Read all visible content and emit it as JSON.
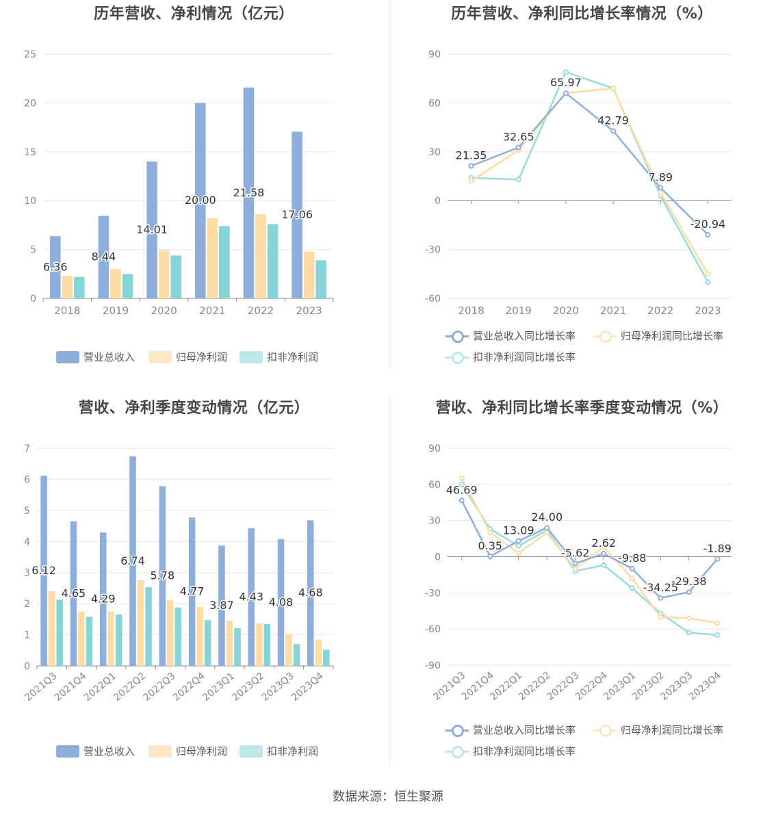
{
  "footer": "数据来源：恒生聚源",
  "legend_bar": [
    "营业总收入",
    "归母净利润",
    "扣非净利润"
  ],
  "legend_line": [
    "营业总收入同比增长率",
    "归母净利润同比增长率",
    "扣非净利润同比增长率"
  ],
  "colors": {
    "revenue": "#8eaedb",
    "net_profit": "#fedca5",
    "deducted_profit": "#86d4d8"
  },
  "chart_data": [
    {
      "type": "bar",
      "title": "历年营收、净利情况（亿元）",
      "categories": [
        "2018",
        "2019",
        "2020",
        "2021",
        "2022",
        "2023"
      ],
      "ylim": [
        0,
        25
      ],
      "yticks": [
        0,
        5,
        10,
        15,
        20,
        25
      ],
      "series": [
        {
          "name": "营业总收入",
          "values": [
            6.36,
            8.44,
            14.01,
            20.0,
            21.58,
            17.06
          ],
          "labels": [
            "6.36",
            "8.44",
            "14.01",
            "20.00",
            "21.58",
            "17.06"
          ]
        },
        {
          "name": "归母净利润",
          "values": [
            2.3,
            3.0,
            4.9,
            8.2,
            8.6,
            4.8
          ]
        },
        {
          "name": "扣非净利润",
          "values": [
            2.2,
            2.5,
            4.4,
            7.4,
            7.6,
            3.9
          ]
        }
      ]
    },
    {
      "type": "line",
      "title": "历年营收、净利同比增长率情况（%）",
      "categories": [
        "2018",
        "2019",
        "2020",
        "2021",
        "2022",
        "2023"
      ],
      "ylim": [
        -60,
        90
      ],
      "yticks": [
        -60,
        -30,
        0,
        30,
        60,
        90
      ],
      "series": [
        {
          "name": "营业总收入同比增长率",
          "values": [
            21.35,
            32.65,
            65.97,
            42.79,
            7.89,
            -20.94
          ],
          "labels": [
            "21.35",
            "32.65",
            "65.97",
            "42.79",
            "7.89",
            "-20.94"
          ]
        },
        {
          "name": "归母净利润同比增长率",
          "values": [
            12,
            31,
            66,
            69,
            5,
            -45
          ]
        },
        {
          "name": "扣非净利润同比增长率",
          "values": [
            14,
            13,
            79,
            69,
            3,
            -50
          ]
        }
      ]
    },
    {
      "type": "bar",
      "title": "营收、净利季度变动情况（亿元）",
      "categories": [
        "2021Q3",
        "2021Q4",
        "2022Q1",
        "2022Q2",
        "2022Q3",
        "2022Q4",
        "2023Q1",
        "2023Q2",
        "2023Q3",
        "2023Q4"
      ],
      "ylim": [
        0,
        7
      ],
      "yticks": [
        0,
        1,
        2,
        3,
        4,
        5,
        6,
        7
      ],
      "series": [
        {
          "name": "营业总收入",
          "values": [
            6.12,
            4.65,
            4.29,
            6.74,
            5.78,
            4.77,
            3.87,
            4.43,
            4.08,
            4.68
          ],
          "labels": [
            "6.12",
            "4.65",
            "4.29",
            "6.74",
            "5.78",
            "4.77",
            "3.87",
            "4.43",
            "4.08",
            "4.68"
          ]
        },
        {
          "name": "归母净利润",
          "values": [
            2.4,
            1.75,
            1.75,
            2.75,
            2.12,
            1.9,
            1.45,
            1.37,
            1.02,
            0.85
          ]
        },
        {
          "name": "扣非净利润",
          "values": [
            2.13,
            1.58,
            1.65,
            2.53,
            1.88,
            1.47,
            1.21,
            1.35,
            0.7,
            0.52
          ]
        }
      ]
    },
    {
      "type": "line",
      "title": "营收、净利同比增长率季度变动情况（%）",
      "categories": [
        "2021Q3",
        "2021Q4",
        "2022Q1",
        "2022Q2",
        "2022Q3",
        "2022Q4",
        "2023Q1",
        "2023Q2",
        "2023Q3",
        "2023Q4"
      ],
      "ylim": [
        -90,
        90
      ],
      "yticks": [
        -90,
        -60,
        -30,
        0,
        30,
        60,
        90
      ],
      "series": [
        {
          "name": "营业总收入同比增长率",
          "values": [
            46.69,
            0.35,
            13.09,
            24.0,
            -5.62,
            2.62,
            -9.88,
            -34.25,
            -29.38,
            -1.89
          ],
          "labels": [
            "46.69",
            "0.35",
            "13.09",
            "24.00",
            "-5.62",
            "2.62",
            "-9.88",
            "-34.25",
            "-29.38",
            "-1.89"
          ]
        },
        {
          "name": "归母净利润同比增长率",
          "values": [
            65,
            20,
            3,
            20,
            -10,
            8,
            -18,
            -50,
            -51,
            -55
          ]
        },
        {
          "name": "扣非净利润同比增长率",
          "values": [
            60,
            23,
            9,
            22,
            -12,
            -7,
            -26,
            -47,
            -63,
            -65
          ]
        }
      ]
    }
  ]
}
